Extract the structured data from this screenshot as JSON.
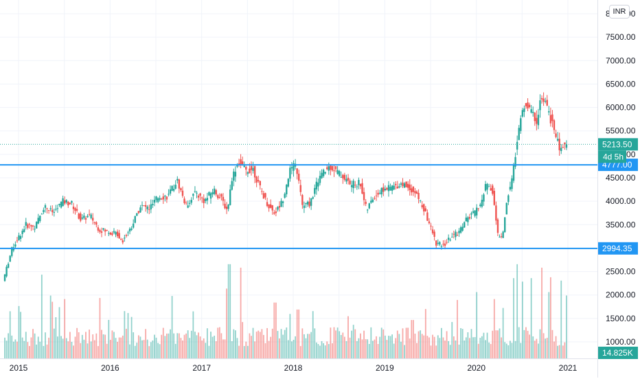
{
  "chart_data": {
    "type": "candlestick",
    "currency": "INR",
    "price_axis": {
      "ticks": [
        {
          "value": 8000,
          "label": "8000.00"
        },
        {
          "value": 7500,
          "label": "7500.00"
        },
        {
          "value": 7000,
          "label": "7000.00"
        },
        {
          "value": 6500,
          "label": "6500.00"
        },
        {
          "value": 6000,
          "label": "6000.00"
        },
        {
          "value": 5500,
          "label": "5500.00"
        },
        {
          "value": 5000,
          "label": "5000.00"
        },
        {
          "value": 4500,
          "label": "4500.00"
        },
        {
          "value": 4000,
          "label": "4000.00"
        },
        {
          "value": 3500,
          "label": "3500.00"
        },
        {
          "value": 3000,
          "label": "3000.00"
        },
        {
          "value": 2500,
          "label": "2500.00"
        },
        {
          "value": 2000,
          "label": "2000.00"
        },
        {
          "value": 1500,
          "label": "1500.00"
        },
        {
          "value": 1000,
          "label": "1000.00"
        }
      ]
    },
    "time_axis": {
      "ticks": [
        {
          "year": 2015.0,
          "label": "2015"
        },
        {
          "year": 2016.0,
          "label": "2016"
        },
        {
          "year": 2017.0,
          "label": "2017"
        },
        {
          "year": 2018.0,
          "label": "2018"
        },
        {
          "year": 2019.0,
          "label": "2019"
        },
        {
          "year": 2020.0,
          "label": "2020"
        },
        {
          "year": 2021.0,
          "label": "2021"
        }
      ]
    },
    "horizontal_lines": [
      {
        "value": 4777.0,
        "label": "4777.00",
        "color": "#2196f3"
      },
      {
        "value": 2994.35,
        "label": "2994.35",
        "color": "#2196f3"
      }
    ],
    "last_price": {
      "value": 5213.5,
      "label": "5213.50",
      "countdown": "4d 5h",
      "color": "#26a69a"
    },
    "volume_label": {
      "label": "14.825K",
      "color": "#26a69a"
    },
    "price_path": [
      [
        2014.85,
        2300
      ],
      [
        2014.95,
        3000
      ],
      [
        2015.1,
        3500
      ],
      [
        2015.2,
        3450
      ],
      [
        2015.3,
        3900
      ],
      [
        2015.4,
        3750
      ],
      [
        2015.5,
        4000
      ],
      [
        2015.6,
        3950
      ],
      [
        2015.7,
        3600
      ],
      [
        2015.8,
        3700
      ],
      [
        2015.9,
        3400
      ],
      [
        2016.0,
        3350
      ],
      [
        2016.1,
        3300
      ],
      [
        2016.15,
        3150
      ],
      [
        2016.25,
        3450
      ],
      [
        2016.35,
        3900
      ],
      [
        2016.45,
        3850
      ],
      [
        2016.55,
        4100
      ],
      [
        2016.65,
        4100
      ],
      [
        2016.75,
        4450
      ],
      [
        2016.85,
        3900
      ],
      [
        2016.95,
        4200
      ],
      [
        2017.05,
        4000
      ],
      [
        2017.15,
        4250
      ],
      [
        2017.25,
        4000
      ],
      [
        2017.3,
        3800
      ],
      [
        2017.35,
        4500
      ],
      [
        2017.42,
        4850
      ],
      [
        2017.5,
        4650
      ],
      [
        2017.58,
        4700
      ],
      [
        2017.65,
        4300
      ],
      [
        2017.75,
        3900
      ],
      [
        2017.82,
        3750
      ],
      [
        2017.9,
        4000
      ],
      [
        2017.98,
        4650
      ],
      [
        2018.05,
        4780
      ],
      [
        2018.12,
        3900
      ],
      [
        2018.2,
        3950
      ],
      [
        2018.3,
        4500
      ],
      [
        2018.42,
        4750
      ],
      [
        2018.55,
        4550
      ],
      [
        2018.65,
        4350
      ],
      [
        2018.75,
        4400
      ],
      [
        2018.82,
        3800
      ],
      [
        2018.9,
        4100
      ],
      [
        2019.0,
        4250
      ],
      [
        2019.1,
        4300
      ],
      [
        2019.2,
        4380
      ],
      [
        2019.3,
        4280
      ],
      [
        2019.38,
        4100
      ],
      [
        2019.45,
        3800
      ],
      [
        2019.52,
        3450
      ],
      [
        2019.58,
        3100
      ],
      [
        2019.66,
        3050
      ],
      [
        2019.75,
        3250
      ],
      [
        2019.83,
        3350
      ],
      [
        2019.9,
        3600
      ],
      [
        2020.0,
        3750
      ],
      [
        2020.08,
        4000
      ],
      [
        2020.13,
        4400
      ],
      [
        2020.2,
        4200
      ],
      [
        2020.25,
        3300
      ],
      [
        2020.3,
        3200
      ],
      [
        2020.36,
        4100
      ],
      [
        2020.42,
        4600
      ],
      [
        2020.47,
        5400
      ],
      [
        2020.5,
        5700
      ],
      [
        2020.55,
        6100
      ],
      [
        2020.62,
        5900
      ],
      [
        2020.68,
        5700
      ],
      [
        2020.72,
        6200
      ],
      [
        2020.78,
        6050
      ],
      [
        2020.85,
        5650
      ],
      [
        2020.9,
        5300
      ],
      [
        2020.94,
        5050
      ],
      [
        2020.97,
        5200
      ],
      [
        2020.99,
        5213.5
      ]
    ],
    "volume_bursts": [
      [
        2015.0,
        1500
      ],
      [
        2015.25,
        2400
      ],
      [
        2015.35,
        1800
      ],
      [
        2015.5,
        1700
      ],
      [
        2016.2,
        1300
      ],
      [
        2017.28,
        2000
      ],
      [
        2017.3,
        2700
      ],
      [
        2017.42,
        2600
      ],
      [
        2017.8,
        1600
      ],
      [
        2018.05,
        1400
      ],
      [
        2019.3,
        1100
      ],
      [
        2020.0,
        1900
      ],
      [
        2020.2,
        1700
      ],
      [
        2020.4,
        2300
      ],
      [
        2020.45,
        2700
      ],
      [
        2020.5,
        2200
      ],
      [
        2020.6,
        2300
      ],
      [
        2020.72,
        2600
      ],
      [
        2020.8,
        1900
      ],
      [
        2020.92,
        1800
      ]
    ]
  }
}
